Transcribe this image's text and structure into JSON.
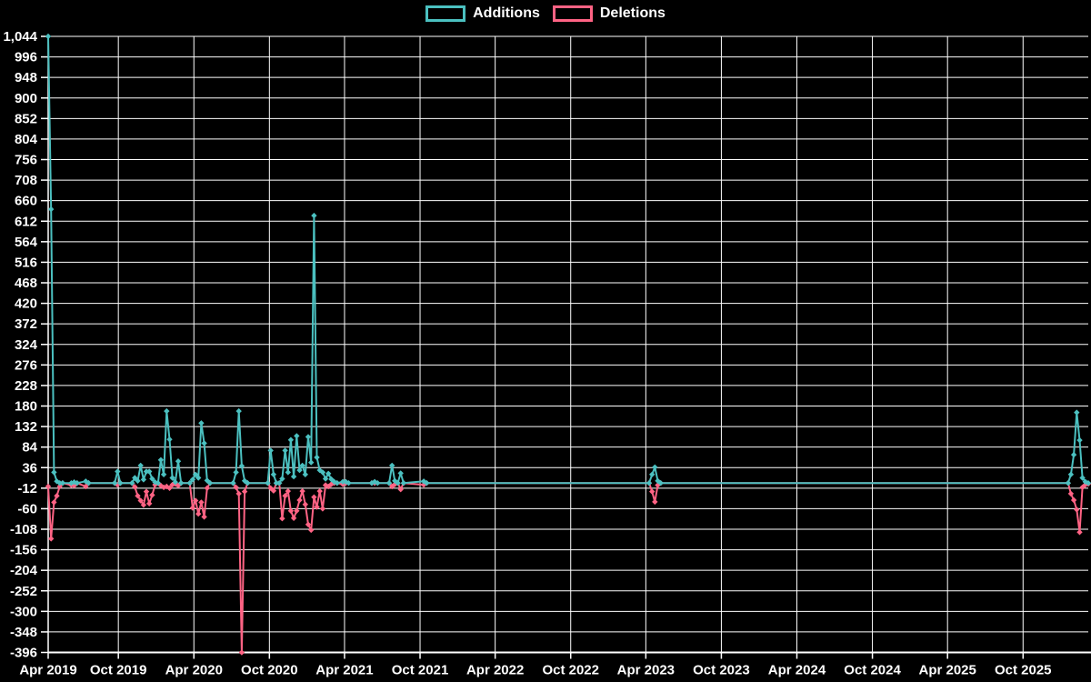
{
  "legend": {
    "additions_label": "Additions",
    "deletions_label": "Deletions"
  },
  "chart_data": {
    "type": "line",
    "title": "",
    "legend_position": "top",
    "grid": true,
    "background": "#000000",
    "text_color": "#ffffff",
    "grid_color": "#ffffff",
    "x_min": "2019-04-14",
    "x_max": "2026-03-08",
    "y_min": -396,
    "y_max": 1044,
    "y_step": 48,
    "x_tick_labels": [
      "Apr 2019",
      "Oct 2019",
      "Apr 2020",
      "Oct 2020",
      "Apr 2021",
      "Oct 2021",
      "Apr 2022",
      "Oct 2022",
      "Apr 2023",
      "Oct 2023",
      "Apr 2024",
      "Oct 2024",
      "Apr 2025",
      "Oct 2025"
    ],
    "x_tick_dates": [
      "2019-04-14",
      "2019-10-01",
      "2020-04-01",
      "2020-10-01",
      "2021-04-01",
      "2021-10-01",
      "2022-04-01",
      "2022-10-01",
      "2023-04-01",
      "2023-10-01",
      "2024-04-01",
      "2024-10-01",
      "2025-04-01",
      "2025-10-01"
    ],
    "series": [
      {
        "name": "Additions",
        "color": "#4bc0c0",
        "points": [
          [
            "2019-04-14",
            1044
          ],
          [
            "2019-04-21",
            640
          ],
          [
            "2019-04-28",
            25
          ],
          [
            "2019-05-05",
            4
          ],
          [
            "2019-05-12",
            0
          ],
          [
            "2019-05-19",
            0
          ],
          [
            "2019-06-09",
            0
          ],
          [
            "2019-06-16",
            2
          ],
          [
            "2019-06-23",
            0
          ],
          [
            "2019-07-14",
            4
          ],
          [
            "2019-07-21",
            0
          ],
          [
            "2019-09-22",
            0
          ],
          [
            "2019-09-29",
            27
          ],
          [
            "2019-10-06",
            0
          ],
          [
            "2019-11-03",
            0
          ],
          [
            "2019-11-10",
            12
          ],
          [
            "2019-11-17",
            5
          ],
          [
            "2019-11-24",
            41
          ],
          [
            "2019-12-01",
            8
          ],
          [
            "2019-12-08",
            27
          ],
          [
            "2019-12-15",
            27
          ],
          [
            "2019-12-22",
            10
          ],
          [
            "2019-12-29",
            2
          ],
          [
            "2020-01-05",
            0
          ],
          [
            "2020-01-12",
            54
          ],
          [
            "2020-01-19",
            20
          ],
          [
            "2020-01-26",
            168
          ],
          [
            "2020-02-02",
            102
          ],
          [
            "2020-02-09",
            12
          ],
          [
            "2020-02-16",
            2
          ],
          [
            "2020-02-23",
            51
          ],
          [
            "2020-03-01",
            0
          ],
          [
            "2020-03-22",
            0
          ],
          [
            "2020-03-29",
            8
          ],
          [
            "2020-04-05",
            20
          ],
          [
            "2020-04-12",
            12
          ],
          [
            "2020-04-19",
            140
          ],
          [
            "2020-04-26",
            93
          ],
          [
            "2020-05-03",
            6
          ],
          [
            "2020-05-10",
            0
          ],
          [
            "2020-07-05",
            0
          ],
          [
            "2020-07-12",
            25
          ],
          [
            "2020-07-19",
            168
          ],
          [
            "2020-07-26",
            40
          ],
          [
            "2020-08-02",
            5
          ],
          [
            "2020-08-09",
            0
          ],
          [
            "2020-09-27",
            0
          ],
          [
            "2020-10-04",
            76
          ],
          [
            "2020-10-11",
            20
          ],
          [
            "2020-10-18",
            0
          ],
          [
            "2020-10-25",
            0
          ],
          [
            "2020-11-01",
            10
          ],
          [
            "2020-11-08",
            76
          ],
          [
            "2020-11-15",
            25
          ],
          [
            "2020-11-22",
            101
          ],
          [
            "2020-11-29",
            15
          ],
          [
            "2020-12-06",
            110
          ],
          [
            "2020-12-13",
            30
          ],
          [
            "2020-12-20",
            41
          ],
          [
            "2020-12-27",
            20
          ],
          [
            "2021-01-03",
            108
          ],
          [
            "2021-01-10",
            48
          ],
          [
            "2021-01-17",
            625
          ],
          [
            "2021-01-24",
            60
          ],
          [
            "2021-01-31",
            30
          ],
          [
            "2021-02-07",
            25
          ],
          [
            "2021-02-14",
            10
          ],
          [
            "2021-02-21",
            22
          ],
          [
            "2021-02-28",
            9
          ],
          [
            "2021-03-07",
            3
          ],
          [
            "2021-03-14",
            0
          ],
          [
            "2021-03-28",
            3
          ],
          [
            "2021-04-04",
            3
          ],
          [
            "2021-04-11",
            0
          ],
          [
            "2021-06-06",
            0
          ],
          [
            "2021-06-13",
            3
          ],
          [
            "2021-06-20",
            0
          ],
          [
            "2021-07-18",
            0
          ],
          [
            "2021-07-25",
            41
          ],
          [
            "2021-08-01",
            5
          ],
          [
            "2021-08-08",
            0
          ],
          [
            "2021-08-15",
            23
          ],
          [
            "2021-08-22",
            0
          ],
          [
            "2021-10-10",
            4
          ],
          [
            "2021-10-17",
            0
          ],
          [
            "2023-04-09",
            0
          ],
          [
            "2023-04-16",
            20
          ],
          [
            "2023-04-23",
            37
          ],
          [
            "2023-04-30",
            5
          ],
          [
            "2023-05-07",
            0
          ],
          [
            "2026-01-18",
            0
          ],
          [
            "2026-01-25",
            20
          ],
          [
            "2026-02-01",
            66
          ],
          [
            "2026-02-08",
            165
          ],
          [
            "2026-02-15",
            100
          ],
          [
            "2026-02-22",
            12
          ],
          [
            "2026-03-01",
            3
          ],
          [
            "2026-03-08",
            0
          ]
        ]
      },
      {
        "name": "Deletions",
        "color": "#ff6384",
        "points": [
          [
            "2019-04-14",
            -8
          ],
          [
            "2019-04-21",
            -130
          ],
          [
            "2019-04-28",
            -45
          ],
          [
            "2019-05-05",
            -30
          ],
          [
            "2019-05-12",
            -8
          ],
          [
            "2019-05-19",
            0
          ],
          [
            "2019-06-09",
            -5
          ],
          [
            "2019-06-16",
            -6
          ],
          [
            "2019-06-23",
            0
          ],
          [
            "2019-07-14",
            -8
          ],
          [
            "2019-07-21",
            0
          ],
          [
            "2019-09-22",
            0
          ],
          [
            "2019-09-29",
            -4
          ],
          [
            "2019-10-06",
            0
          ],
          [
            "2019-11-03",
            0
          ],
          [
            "2019-11-10",
            -9
          ],
          [
            "2019-11-17",
            -30
          ],
          [
            "2019-11-24",
            -41
          ],
          [
            "2019-12-01",
            -51
          ],
          [
            "2019-12-08",
            -20
          ],
          [
            "2019-12-15",
            -48
          ],
          [
            "2019-12-22",
            -28
          ],
          [
            "2019-12-29",
            -4
          ],
          [
            "2020-01-05",
            0
          ],
          [
            "2020-01-12",
            -6
          ],
          [
            "2020-01-19",
            -10
          ],
          [
            "2020-01-26",
            -8
          ],
          [
            "2020-02-02",
            -12
          ],
          [
            "2020-02-09",
            -4
          ],
          [
            "2020-02-16",
            -2
          ],
          [
            "2020-02-23",
            -6
          ],
          [
            "2020-03-01",
            0
          ],
          [
            "2020-03-22",
            0
          ],
          [
            "2020-03-29",
            -58
          ],
          [
            "2020-04-05",
            -41
          ],
          [
            "2020-04-12",
            -72
          ],
          [
            "2020-04-19",
            -45
          ],
          [
            "2020-04-26",
            -79
          ],
          [
            "2020-05-03",
            -12
          ],
          [
            "2020-05-10",
            0
          ],
          [
            "2020-07-05",
            0
          ],
          [
            "2020-07-12",
            -10
          ],
          [
            "2020-07-19",
            -25
          ],
          [
            "2020-07-26",
            -396
          ],
          [
            "2020-08-02",
            -20
          ],
          [
            "2020-08-09",
            0
          ],
          [
            "2020-09-27",
            0
          ],
          [
            "2020-10-04",
            -12
          ],
          [
            "2020-10-11",
            -18
          ],
          [
            "2020-10-18",
            0
          ],
          [
            "2020-10-25",
            0
          ],
          [
            "2020-11-01",
            -83
          ],
          [
            "2020-11-08",
            -30
          ],
          [
            "2020-11-15",
            -19
          ],
          [
            "2020-11-22",
            -65
          ],
          [
            "2020-11-29",
            -82
          ],
          [
            "2020-12-06",
            -65
          ],
          [
            "2020-12-13",
            -40
          ],
          [
            "2020-12-20",
            -19
          ],
          [
            "2020-12-27",
            -50
          ],
          [
            "2021-01-03",
            -97
          ],
          [
            "2021-01-10",
            -110
          ],
          [
            "2021-01-17",
            -33
          ],
          [
            "2021-01-24",
            -56
          ],
          [
            "2021-01-31",
            -19
          ],
          [
            "2021-02-07",
            -60
          ],
          [
            "2021-02-14",
            -5
          ],
          [
            "2021-02-21",
            -8
          ],
          [
            "2021-02-28",
            -3
          ],
          [
            "2021-03-07",
            0
          ],
          [
            "2021-03-14",
            0
          ],
          [
            "2021-03-28",
            -3
          ],
          [
            "2021-04-04",
            0
          ],
          [
            "2021-06-06",
            0
          ],
          [
            "2021-06-13",
            0
          ],
          [
            "2021-07-18",
            0
          ],
          [
            "2021-07-25",
            -8
          ],
          [
            "2021-08-01",
            -3
          ],
          [
            "2021-08-08",
            0
          ],
          [
            "2021-08-15",
            -15
          ],
          [
            "2021-08-22",
            0
          ],
          [
            "2021-10-10",
            -4
          ],
          [
            "2021-10-17",
            0
          ],
          [
            "2023-04-09",
            0
          ],
          [
            "2023-04-16",
            -20
          ],
          [
            "2023-04-23",
            -44
          ],
          [
            "2023-04-30",
            -5
          ],
          [
            "2023-05-07",
            0
          ],
          [
            "2026-01-18",
            0
          ],
          [
            "2026-01-25",
            -25
          ],
          [
            "2026-02-01",
            -40
          ],
          [
            "2026-02-08",
            -62
          ],
          [
            "2026-02-15",
            -115
          ],
          [
            "2026-02-22",
            -10
          ],
          [
            "2026-03-01",
            -4
          ],
          [
            "2026-03-08",
            -2
          ]
        ]
      }
    ]
  }
}
